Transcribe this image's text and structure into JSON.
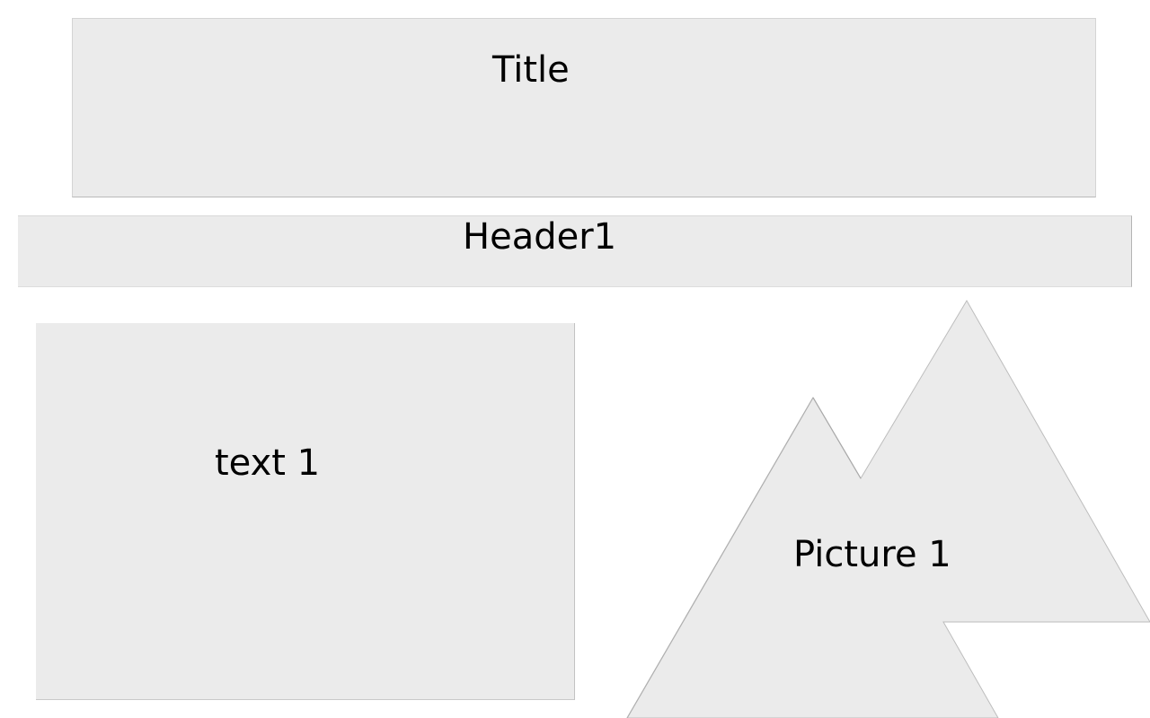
{
  "slide": {
    "title_placeholder": "Title",
    "header_placeholder": "Header1",
    "text_placeholder": "text 1",
    "picture_placeholder": "Picture 1",
    "picture_icon": "mountains-icon",
    "fill_color": "#ebebeb"
  }
}
